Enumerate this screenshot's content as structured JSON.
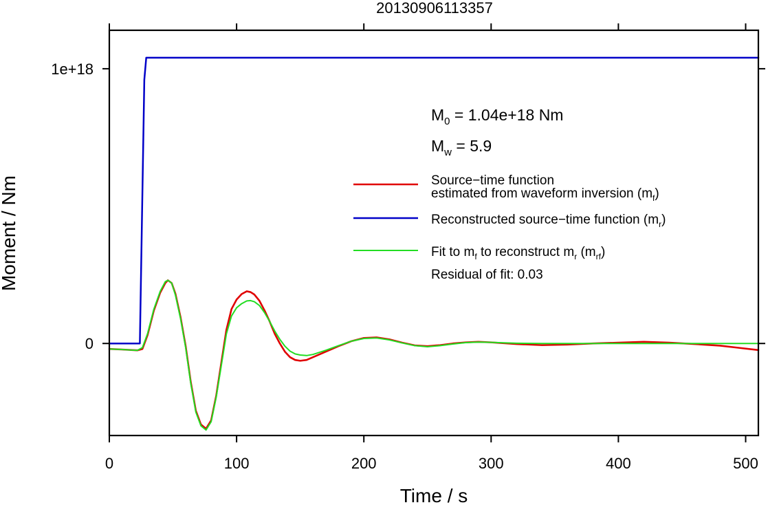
{
  "chart_data": {
    "type": "line",
    "title": "20130906113357",
    "xlabel": "Time / s",
    "ylabel": "Moment / Nm",
    "xlim": [
      0,
      510
    ],
    "ylim": [
      -3.35e+17,
      1.14e+18
    ],
    "x_ticks": [
      0,
      100,
      200,
      300,
      400,
      500
    ],
    "x_tick_labels": [
      "0",
      "100",
      "200",
      "300",
      "400",
      "500"
    ],
    "y_ticks": [
      0,
      1e+18
    ],
    "y_tick_labels": [
      "0",
      "1e+18"
    ],
    "grid": false,
    "annotations": {
      "m0_base": "M",
      "m0_sub": "0",
      "m0_value": " = 1.04e+18 Nm",
      "mw_base": "M",
      "mw_sub": "w",
      "mw_value": " = 5.9",
      "residual": "Residual of fit: 0.03"
    },
    "legend": {
      "position": "right",
      "entries": [
        {
          "line1": "Source−time function",
          "line2_main": "estimated from waveform inversion (m",
          "line2_sub": "f",
          "line2_end": ")",
          "color": "#e00000"
        },
        {
          "main": "Reconstructed source−time function (m",
          "sub": "r",
          "end": ")",
          "color": "#0000c8"
        },
        {
          "p1": "Fit to m",
          "s1": "f",
          "p2": " to reconstruct m",
          "s2": "r",
          "p3": " (m",
          "s3": "rf",
          "p4": ")",
          "color": "#22dd22"
        }
      ]
    },
    "series": [
      {
        "key": "reconstructed",
        "color": "#0000c8",
        "x": [
          0,
          24,
          27.5,
          29,
          510
        ],
        "y": [
          0,
          0,
          9.6e+17,
          1.04e+18,
          1.04e+18
        ]
      },
      {
        "key": "estimated",
        "color": "#e00000",
        "x": [
          0,
          10,
          22,
          26,
          30,
          35,
          40,
          44,
          46,
          49,
          52,
          56,
          60,
          64,
          68,
          72,
          76,
          80,
          84,
          88,
          92,
          96,
          100,
          104,
          108,
          111,
          114,
          118,
          122,
          126,
          130,
          134,
          138,
          142,
          146,
          150,
          155,
          160,
          170,
          180,
          190,
          200,
          210,
          220,
          230,
          240,
          250,
          260,
          270,
          280,
          290,
          300,
          320,
          340,
          360,
          380,
          400,
          420,
          440,
          460,
          480,
          495,
          510
        ],
        "y": [
          -2e+16,
          -2.2e+16,
          -2.5e+16,
          -2e+16,
          3e+16,
          1.2e+17,
          1.85e+17,
          2.2e+17,
          2.3e+17,
          2.2e+17,
          1.8e+17,
          9.5e+16,
          -1e+16,
          -1.4e+17,
          -2.45e+17,
          -2.95e+17,
          -3.1e+17,
          -2.8e+17,
          -1.9e+17,
          -7e+16,
          5e+16,
          1.25e+17,
          1.6e+17,
          1.8e+17,
          1.9e+17,
          1.87e+17,
          1.78e+17,
          1.55e+17,
          1.2e+17,
          8e+16,
          3.5e+16,
          0.0,
          -3e+16,
          -5e+16,
          -6e+16,
          -6.3e+16,
          -6e+16,
          -5e+16,
          -3e+16,
          -1e+16,
          8000000000000000.0,
          2e+16,
          2.2e+16,
          1.5e+16,
          3000000000000000.0,
          -7000000000000000.0,
          -1e+16,
          -6000000000000000.0,
          0.0,
          4000000000000000.0,
          6000000000000000.0,
          4000000000000000.0,
          -2000000000000000.0,
          -6000000000000000.0,
          -4000000000000000.0,
          0.0,
          3000000000000000.0,
          6000000000000000.0,
          3000000000000000.0,
          -2000000000000000.0,
          -8000000000000000.0,
          -1.6e+16,
          -2.4e+16
        ]
      },
      {
        "key": "fit",
        "color": "#22dd22",
        "x": [
          0,
          10,
          22,
          26,
          30,
          35,
          40,
          44,
          46,
          49,
          52,
          56,
          60,
          64,
          68,
          72,
          76,
          80,
          84,
          88,
          92,
          96,
          100,
          104,
          108,
          111,
          114,
          118,
          122,
          126,
          130,
          134,
          138,
          142,
          146,
          150,
          155,
          160,
          170,
          180,
          190,
          200,
          210,
          220,
          230,
          240,
          250,
          260,
          270,
          280,
          290,
          300,
          320,
          340,
          360,
          380,
          400,
          420,
          440,
          460,
          480,
          495,
          510
        ],
        "y": [
          -2e+16,
          -2.2e+16,
          -2.5e+16,
          -1.5e+16,
          3.5e+16,
          1.25e+17,
          1.9e+17,
          2.25e+17,
          2.3e+17,
          2.2e+17,
          1.75e+17,
          9e+16,
          -1.5e+16,
          -1.45e+17,
          -2.5e+17,
          -3e+17,
          -3.15e+17,
          -2.85e+17,
          -1.95e+17,
          -8e+16,
          3.5e+16,
          1e+17,
          1.3e+17,
          1.45e+17,
          1.55e+17,
          1.56e+17,
          1.52e+17,
          1.38e+17,
          1.12e+17,
          8e+16,
          4.5e+16,
          1.5e+16,
          -1e+16,
          -2.8e+16,
          -3.8e+16,
          -4.2e+16,
          -4.4e+16,
          -4e+16,
          -2.5e+16,
          -8000000000000000.0,
          8000000000000000.0,
          1.8e+16,
          2e+16,
          1.3e+16,
          2000000000000000.0,
          -8000000000000000.0,
          -1.2e+16,
          -8000000000000000.0,
          -2000000000000000.0,
          3000000000000000.0,
          5000000000000000.0,
          4000000000000000.0,
          1000000000000000.0,
          0.0,
          0.0,
          0.0,
          0.0,
          0.0,
          0.0,
          0.0,
          0.0,
          0.0,
          0.0
        ]
      }
    ]
  }
}
